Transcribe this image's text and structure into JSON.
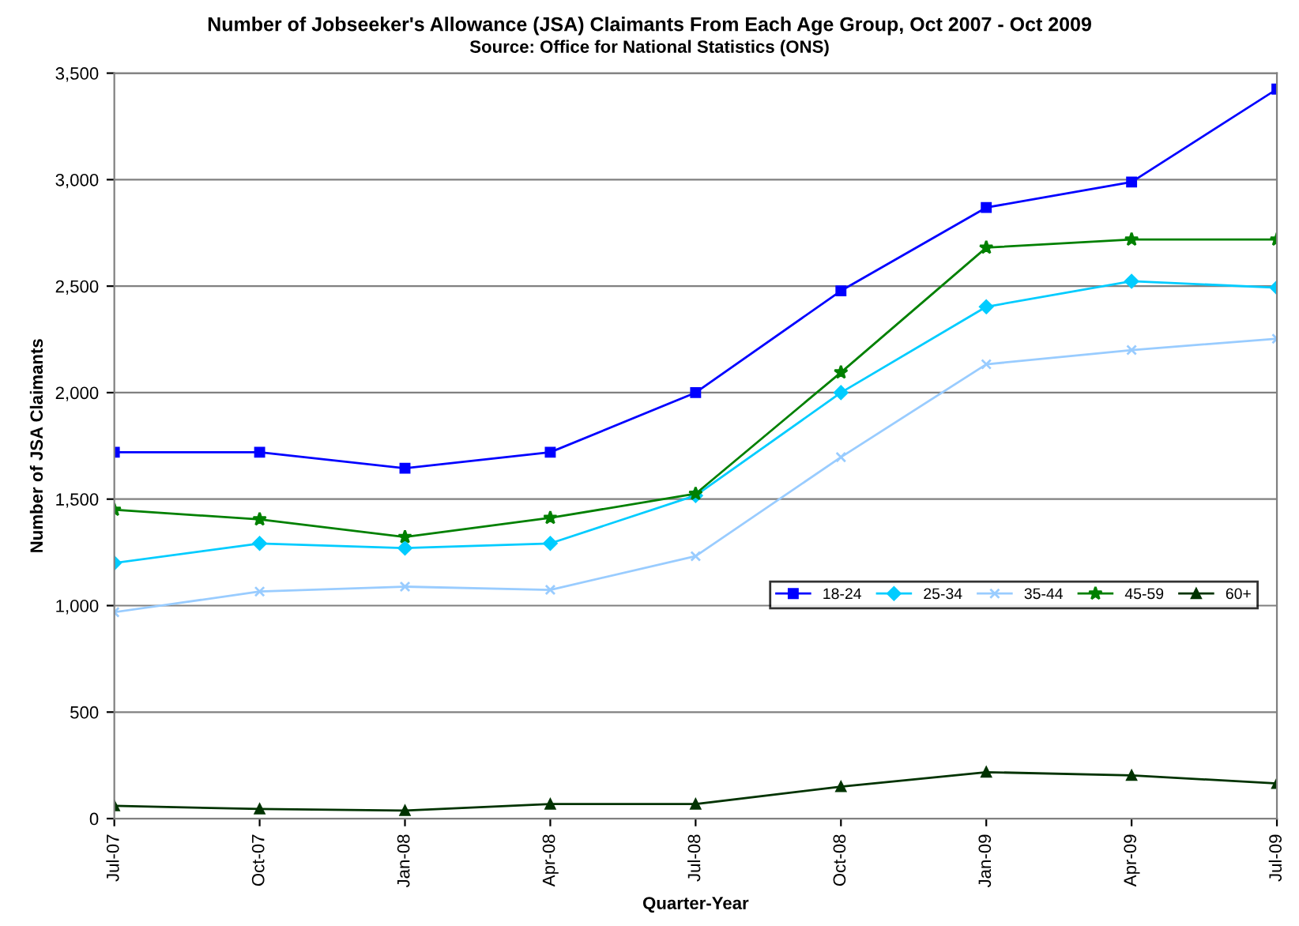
{
  "chart_data": {
    "type": "line",
    "title": "Number of Jobseeker's Allowance (JSA) Claimants From Each Age Group, Oct 2007 - Oct 2009",
    "subtitle": "Source: Office for National Statistics (ONS)",
    "xlabel": "Quarter-Year",
    "ylabel": "Number of JSA Claimants",
    "categories": [
      "Jul-07",
      "Oct-07",
      "Jan-08",
      "Apr-08",
      "Jul-08",
      "Oct-08",
      "Jan-09",
      "Apr-09",
      "Jul-09"
    ],
    "series": [
      {
        "name": "18-24",
        "color": "#0000ff",
        "marker": "square",
        "values": [
          1720,
          1720,
          1645,
          1720,
          2000,
          2478,
          2869,
          2989,
          3425
        ]
      },
      {
        "name": "25-34",
        "color": "#00ccff",
        "marker": "diamond",
        "values": [
          1200,
          1292,
          1270,
          1292,
          1517,
          2000,
          2403,
          2523,
          2493
        ]
      },
      {
        "name": "35-44",
        "color": "#99ccff",
        "marker": "cross",
        "values": [
          969,
          1066,
          1089,
          1074,
          1232,
          1697,
          2133,
          2200,
          2253
        ]
      },
      {
        "name": "45-59",
        "color": "#008000",
        "marker": "star",
        "values": [
          1450,
          1405,
          1322,
          1412,
          1525,
          2095,
          2681,
          2719,
          2719
        ]
      },
      {
        "name": "60+",
        "color": "#003300",
        "marker": "triangle",
        "values": [
          60,
          45,
          38,
          68,
          68,
          150,
          218,
          203,
          165
        ]
      }
    ],
    "ylim": [
      0,
      3500
    ],
    "yticks": [
      0,
      {
        "value": 500,
        "label": "500"
      },
      {
        "value": 1000,
        "label": "1,000"
      },
      {
        "value": 1500,
        "label": "1,500"
      },
      {
        "value": 2000,
        "label": "2,000"
      },
      {
        "value": 2500,
        "label": "2,500"
      },
      {
        "value": 3000,
        "label": "3,000"
      },
      {
        "value": 3500,
        "label": "3,500"
      }
    ],
    "grid": "y",
    "legend": "right"
  }
}
